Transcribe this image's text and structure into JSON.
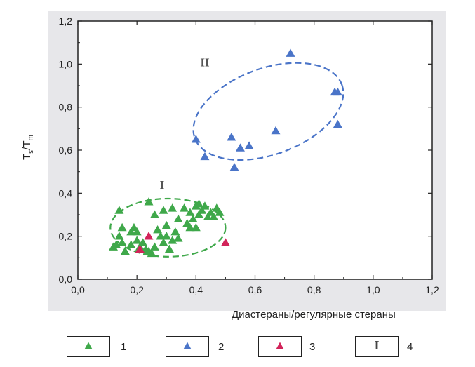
{
  "chart_data": {
    "type": "scatter",
    "title": "",
    "xlabel": "Диастераны/регулярные стераны",
    "ylabel": {
      "main": "T",
      "sub1": "s",
      "sep": "/T",
      "sub2": "m"
    },
    "xlim": [
      0.0,
      1.2
    ],
    "ylim": [
      0.0,
      1.2
    ],
    "xticks": [
      "0,0",
      "0,2",
      "0,4",
      "0,6",
      "0,8",
      "1,0",
      "1,2"
    ],
    "yticks": [
      "0,0",
      "0,2",
      "0,4",
      "0,6",
      "0,8",
      "1,0",
      "1,2"
    ],
    "grid": false,
    "series": [
      {
        "name": "1",
        "color": "#3fa84a",
        "marker": "triangle",
        "points": [
          [
            0.12,
            0.15
          ],
          [
            0.13,
            0.16
          ],
          [
            0.14,
            0.2
          ],
          [
            0.14,
            0.32
          ],
          [
            0.15,
            0.24
          ],
          [
            0.15,
            0.17
          ],
          [
            0.16,
            0.13
          ],
          [
            0.18,
            0.16
          ],
          [
            0.18,
            0.22
          ],
          [
            0.19,
            0.24
          ],
          [
            0.2,
            0.18
          ],
          [
            0.2,
            0.22
          ],
          [
            0.21,
            0.15
          ],
          [
            0.22,
            0.17
          ],
          [
            0.23,
            0.14
          ],
          [
            0.24,
            0.36
          ],
          [
            0.24,
            0.13
          ],
          [
            0.25,
            0.12
          ],
          [
            0.26,
            0.15
          ],
          [
            0.26,
            0.3
          ],
          [
            0.27,
            0.23
          ],
          [
            0.28,
            0.2
          ],
          [
            0.29,
            0.32
          ],
          [
            0.29,
            0.17
          ],
          [
            0.3,
            0.25
          ],
          [
            0.3,
            0.2
          ],
          [
            0.31,
            0.14
          ],
          [
            0.32,
            0.18
          ],
          [
            0.32,
            0.33
          ],
          [
            0.33,
            0.22
          ],
          [
            0.34,
            0.28
          ],
          [
            0.34,
            0.19
          ],
          [
            0.36,
            0.33
          ],
          [
            0.37,
            0.26
          ],
          [
            0.38,
            0.31
          ],
          [
            0.38,
            0.24
          ],
          [
            0.39,
            0.28
          ],
          [
            0.4,
            0.24
          ],
          [
            0.4,
            0.34
          ],
          [
            0.41,
            0.3
          ],
          [
            0.41,
            0.35
          ],
          [
            0.42,
            0.32
          ],
          [
            0.43,
            0.34
          ],
          [
            0.44,
            0.29
          ],
          [
            0.45,
            0.31
          ],
          [
            0.46,
            0.29
          ],
          [
            0.47,
            0.33
          ],
          [
            0.48,
            0.31
          ]
        ]
      },
      {
        "name": "2",
        "color": "#4a74c8",
        "marker": "triangle",
        "points": [
          [
            0.4,
            0.65
          ],
          [
            0.43,
            0.57
          ],
          [
            0.52,
            0.66
          ],
          [
            0.53,
            0.52
          ],
          [
            0.55,
            0.61
          ],
          [
            0.58,
            0.62
          ],
          [
            0.67,
            0.69
          ],
          [
            0.72,
            1.05
          ],
          [
            0.87,
            0.87
          ],
          [
            0.88,
            0.87
          ],
          [
            0.88,
            0.72
          ]
        ]
      },
      {
        "name": "3",
        "color": "#d2245a",
        "marker": "triangle",
        "points": [
          [
            0.21,
            0.14
          ],
          [
            0.24,
            0.2
          ],
          [
            0.5,
            0.17
          ]
        ]
      }
    ],
    "groups": [
      {
        "label": "I",
        "color": "#3fa84a",
        "cx": 0.305,
        "cy": 0.24,
        "rx": 0.195,
        "ry": 0.135,
        "angle": 0,
        "label_x": 0.285,
        "label_y": 0.42
      },
      {
        "label": "II",
        "color": "#4a74c8",
        "cx": 0.645,
        "cy": 0.78,
        "rx": 0.265,
        "ry": 0.2,
        "angle": -20,
        "label_x": 0.43,
        "label_y": 0.99
      }
    ],
    "legend": [
      {
        "symbol": "green-triangle",
        "number": "1"
      },
      {
        "symbol": "blue-triangle",
        "number": "2"
      },
      {
        "symbol": "red-triangle",
        "number": "3"
      },
      {
        "symbol": "roman-I",
        "glyph": "I",
        "number": "4"
      }
    ]
  }
}
